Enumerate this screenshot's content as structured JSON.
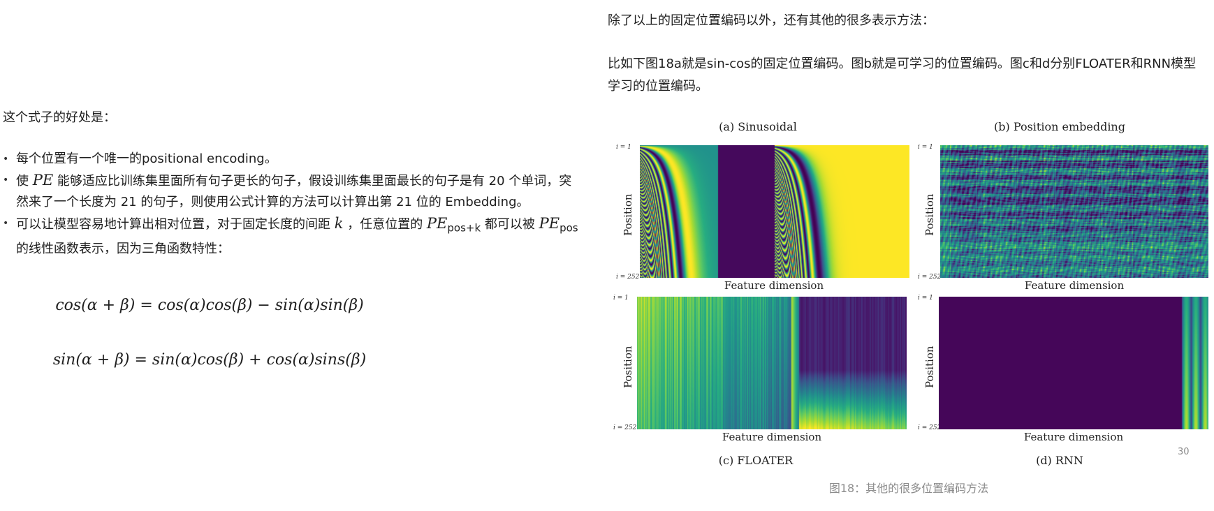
{
  "left": {
    "intro": "这个式子的好处是：",
    "bullets": [
      {
        "id": "b1",
        "parts": [
          {
            "t": "text",
            "v": "每个位置有一个唯一的positional encoding。"
          }
        ]
      },
      {
        "id": "b2",
        "parts": [
          {
            "t": "text",
            "v": "使 "
          },
          {
            "t": "math",
            "v": "PE"
          },
          {
            "t": "text",
            "v": " 能够适应比训练集里面所有句子更长的句子，假设训练集里面最长的句子是有 20 个单词，突然来了一个长度为 21 的句子，则使用公式计算的方法可以计算出第 21 位的 Embedding。"
          }
        ]
      },
      {
        "id": "b3",
        "parts": [
          {
            "t": "text",
            "v": "可以让模型容易地计算出相对位置，对于固定长度的间距 "
          },
          {
            "t": "math",
            "v": "k"
          },
          {
            "t": "text",
            "v": " ，任意位置的 "
          },
          {
            "t": "math",
            "v": "PE",
            "sub": "pos+k"
          },
          {
            "t": "text",
            "v": " 都可以被 "
          },
          {
            "t": "math",
            "v": "PE",
            "sub": "pos"
          },
          {
            "t": "text",
            "v": " 的线性函数表示，因为三角函数特性："
          }
        ]
      }
    ],
    "formula1": "cos(α + β) = cos(α)cos(β) − sin(α)sin(β)",
    "formula2": "sin(α + β) = sin(α)cos(β) + cos(α)sins(β)"
  },
  "right": {
    "p1": "除了以上的固定位置编码以外，还有其他的很多表示方法：",
    "p2": "比如下图18a就是sin-cos的固定位置编码。图b就是可学习的位置编码。图c和d分别FLOATER和RNN模型学习的位置编码。",
    "figure_caption": "图18：其他的很多位置编码方法",
    "page_number": "30",
    "panels": {
      "a": {
        "title": "(a) Sinusoidal",
        "xlabel": "Feature dimension",
        "ylabel": "Position",
        "tick_top": "i = 1",
        "tick_bottom": "i = 252",
        "colormap": "viridis"
      },
      "b": {
        "title": "(b) Position embedding",
        "xlabel": "Feature dimension",
        "ylabel": "Position",
        "tick_top": "i = 1",
        "tick_bottom": "i = 252",
        "colormap": "viridis"
      },
      "c": {
        "caption": "(c) FLOATER",
        "xlabel": "Feature dimension",
        "ylabel": "Position",
        "tick_top": "i = 1",
        "tick_bottom": "i = 252",
        "colormap": "viridis"
      },
      "d": {
        "caption": "(d) RNN",
        "xlabel": "Feature dimension",
        "ylabel": "Position",
        "tick_top": "i = 1",
        "tick_bottom": "i = 252",
        "colormap": "viridis"
      }
    }
  }
}
